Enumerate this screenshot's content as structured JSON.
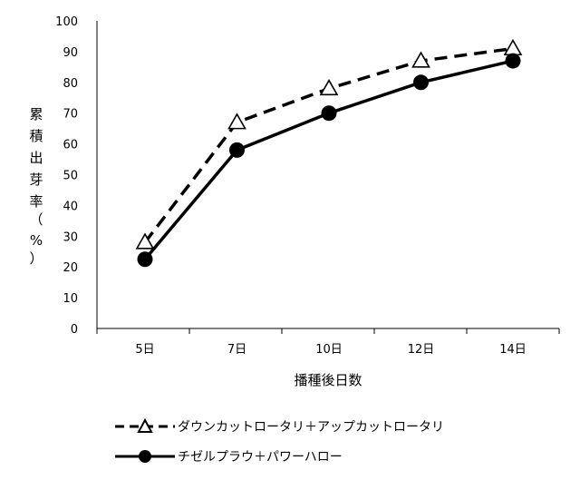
{
  "chart_data": {
    "type": "line",
    "categories": [
      "5日",
      "7日",
      "10日",
      "12日",
      "14日"
    ],
    "series": [
      {
        "name": "ダウンカットロータリ＋アップカットロータリ",
        "values": [
          28,
          67,
          78,
          87,
          91
        ],
        "color": "#000000",
        "line_style": "dashed",
        "marker": "triangle-open"
      },
      {
        "name": "チゼルプラウ＋パワーハロー",
        "values": [
          22.5,
          58,
          70,
          80,
          87
        ],
        "color": "#000000",
        "line_style": "solid",
        "marker": "circle-filled"
      }
    ],
    "xlabel": "播種後日数",
    "ylabel_chars": [
      "累",
      "積",
      "出",
      "芽",
      "率",
      "（",
      "%",
      "）"
    ],
    "ylim": [
      0,
      100
    ],
    "yticks": [
      "0",
      "10",
      "20",
      "30",
      "40",
      "50",
      "60",
      "70",
      "80",
      "90",
      "100"
    ],
    "grid": false,
    "legend_position": "bottom"
  }
}
